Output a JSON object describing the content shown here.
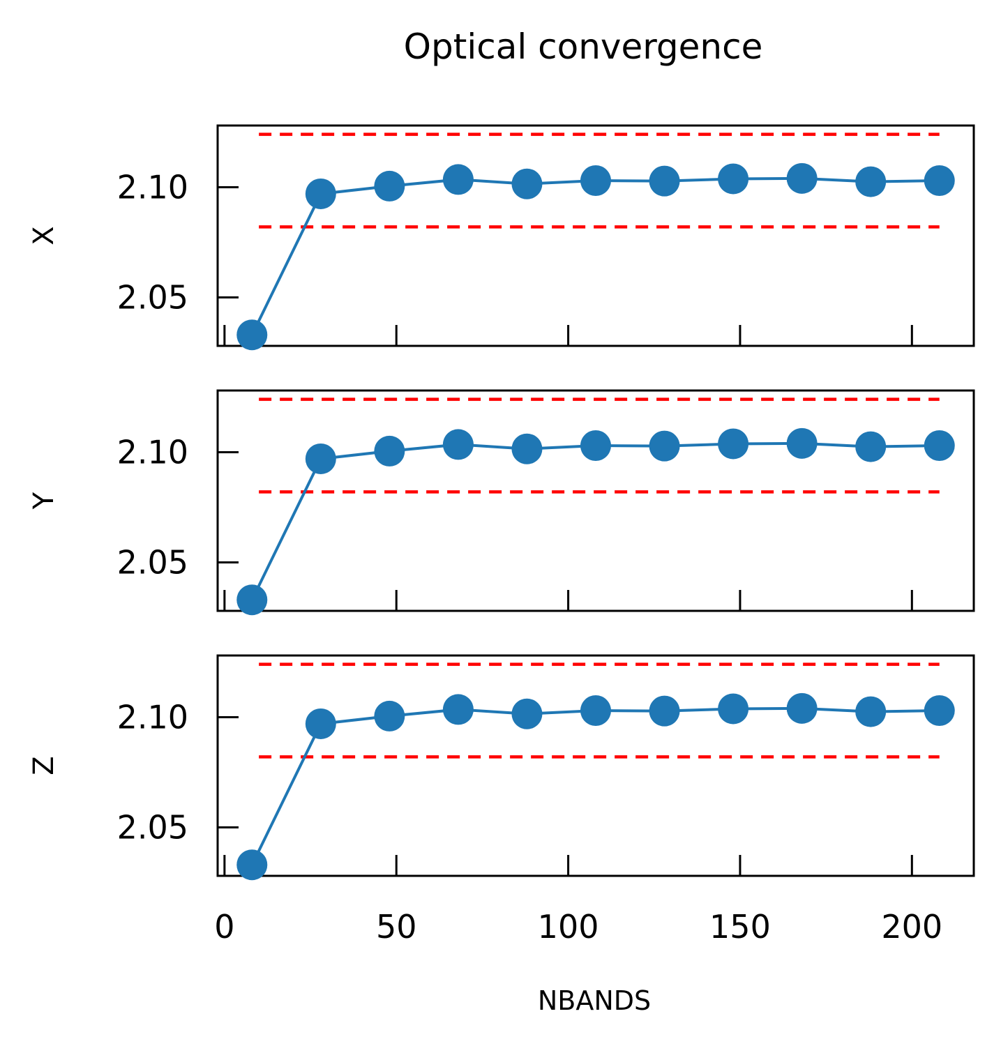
{
  "chart_data": {
    "type": "line",
    "title": "Optical convergence",
    "xlabel": "NBANDS",
    "xlim": [
      -2,
      218
    ],
    "xticks": [
      0,
      50,
      100,
      150,
      200
    ],
    "ylim": [
      2.028,
      2.128
    ],
    "yticks": [
      2.05,
      2.1
    ],
    "ytick_labels": [
      "2.05",
      "2.10"
    ],
    "reference_lines": {
      "lower": 2.082,
      "upper": 2.124,
      "x_range": [
        10,
        208
      ],
      "color": "#ff0000",
      "style": "dashed"
    },
    "series_color": "#1f77b4",
    "panels": [
      {
        "ylabel": "X",
        "x": [
          8,
          28,
          48,
          68,
          88,
          108,
          128,
          148,
          168,
          188,
          208
        ],
        "y": [
          2.033,
          2.097,
          2.1005,
          2.1035,
          2.1015,
          2.103,
          2.1028,
          2.1038,
          2.104,
          2.1025,
          2.103
        ]
      },
      {
        "ylabel": "Y",
        "x": [
          8,
          28,
          48,
          68,
          88,
          108,
          128,
          148,
          168,
          188,
          208
        ],
        "y": [
          2.033,
          2.097,
          2.1005,
          2.1035,
          2.1015,
          2.103,
          2.1028,
          2.1038,
          2.104,
          2.1025,
          2.103
        ]
      },
      {
        "ylabel": "Z",
        "x": [
          8,
          28,
          48,
          68,
          88,
          108,
          128,
          148,
          168,
          188,
          208
        ],
        "y": [
          2.033,
          2.097,
          2.1005,
          2.1035,
          2.1015,
          2.103,
          2.1028,
          2.1038,
          2.104,
          2.1025,
          2.103
        ]
      }
    ]
  }
}
